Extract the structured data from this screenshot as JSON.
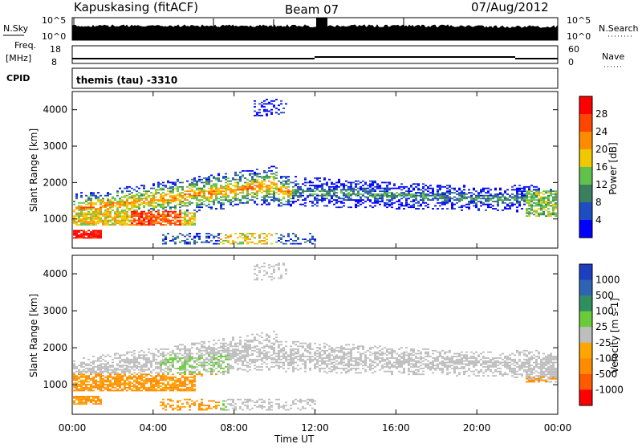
{
  "header": {
    "station": "Kapuskasing (fitACF)",
    "beam": "Beam 07",
    "date": "07/Aug/2012"
  },
  "aux": {
    "nsky_label": "N.Sky",
    "nsky_ticks": [
      "10^5",
      "10^0"
    ],
    "nsearch_label": "N.Search",
    "nsearch_ticks": [
      "10^5",
      "10^0"
    ],
    "freq_label": "Freq.",
    "freq_unit": "[MHz]",
    "freq_ticks": [
      "18",
      "8"
    ],
    "nave_label": "Nave",
    "nave_ticks": [
      "60",
      "0"
    ],
    "cpid_label": "CPID",
    "cpid_value": "themis (tau) -3310"
  },
  "chart_data": [
    {
      "type": "heatmap",
      "name": "power",
      "ylabel": "Slant Range [km]",
      "y_ticks": [
        "4000",
        "3000",
        "2000",
        "1000"
      ],
      "ylim": [
        200,
        4500
      ],
      "colorbar": {
        "label": "Power [dB]",
        "ticks": [
          "28",
          "24",
          "20",
          "16",
          "12",
          "8",
          "4"
        ],
        "colors": [
          "#0000ff",
          "#1d4dc0",
          "#3a7f60",
          "#61c24b",
          "#f0c800",
          "#ff8c00",
          "#ff4500",
          "#ff0000"
        ]
      }
    },
    {
      "type": "heatmap",
      "name": "velocity",
      "ylabel": "Slant Range [km]",
      "y_ticks": [
        "4000",
        "3000",
        "2000",
        "1000"
      ],
      "ylim": [
        200,
        4500
      ],
      "colorbar": {
        "label": "Velocity [m s-1]",
        "ticks": [
          "1000",
          "500",
          "100",
          "25",
          "-25",
          "-100",
          "-500",
          "-1000"
        ],
        "colors": [
          "#ff0000",
          "#ff5a00",
          "#ff8c00",
          "#ffa500",
          "#bebebe",
          "#6acb3a",
          "#2f8f5e",
          "#2f64b4",
          "#1b3fc0"
        ]
      }
    }
  ],
  "x_axis": {
    "ticks": [
      "00:00",
      "04:00",
      "08:00",
      "12:00",
      "16:00",
      "20:00",
      "00:00"
    ],
    "label": "Time UT"
  }
}
